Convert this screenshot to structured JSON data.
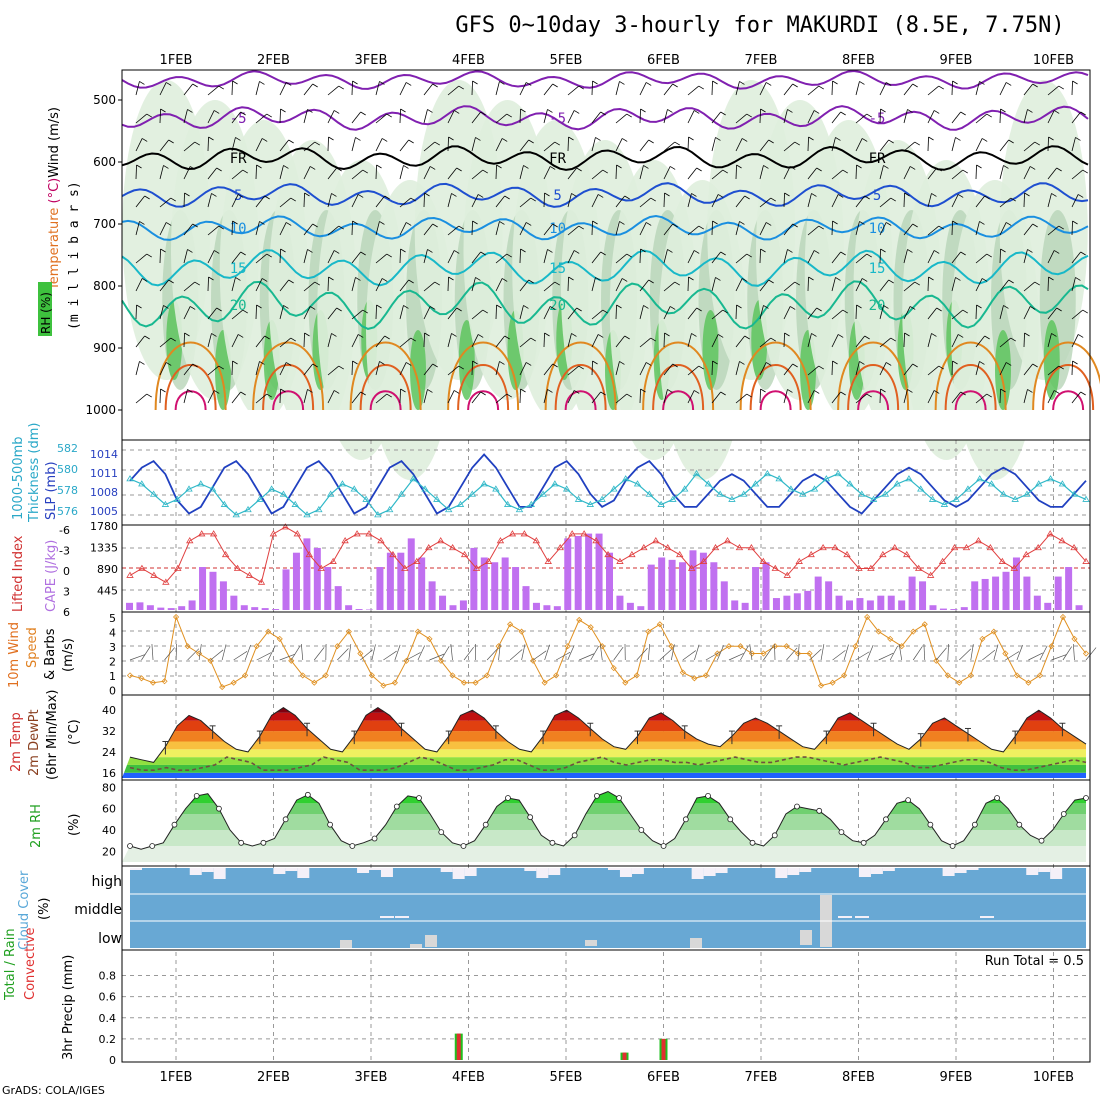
{
  "chart_data": {
    "type": "line",
    "title": "GFS 0~10day 3-hourly for MAKURDI (8.5E, 7.75N)",
    "footer": "GrADS: COLA/IGES",
    "x_dates": [
      "1FEB",
      "2FEB",
      "3FEB",
      "4FEB",
      "5FEB",
      "6FEB",
      "7FEB",
      "8FEB",
      "9FEB",
      "10FEB"
    ],
    "panels": {
      "profile": {
        "label_rh": "RH (%)",
        "label_temperature": "Temperature",
        "label_celsius": "(°C)",
        "label_wind": "Wind (m/s)",
        "ylabel": "(m i l l i b a r s)",
        "y_ticks": [
          "500",
          "600",
          "700",
          "800",
          "900",
          "1000"
        ],
        "contour_labels": [
          "-5",
          "5",
          "10",
          "15",
          "20",
          "FR"
        ]
      },
      "slp": {
        "label_thickness": "1000-500mb",
        "label_thickness2": "Thickness (dm)",
        "label_slp": "SLP (mb)",
        "left_ticks": [
          "582",
          "580",
          "578",
          "576"
        ],
        "right_ticks": [
          "1014",
          "1011",
          "1008",
          "1005"
        ],
        "slp_values": [
          1010,
          1012,
          1013,
          1011,
          1007,
          1005,
          1006,
          1009,
          1012,
          1013,
          1011,
          1008,
          1005,
          1006,
          1009,
          1012,
          1013,
          1011,
          1008,
          1005,
          1006,
          1009,
          1012,
          1013,
          1011,
          1008,
          1005,
          1006,
          1009,
          1012,
          1014,
          1012,
          1009,
          1006,
          1006,
          1009,
          1012,
          1013,
          1011,
          1008,
          1006,
          1007,
          1010,
          1012,
          1013,
          1011,
          1008,
          1006,
          1006,
          1008,
          1010,
          1011,
          1010,
          1008,
          1006,
          1006,
          1008,
          1010,
          1011,
          1010,
          1008,
          1006,
          1005,
          1007,
          1009,
          1011,
          1012,
          1011,
          1009,
          1007,
          1006,
          1007,
          1009,
          1011,
          1012,
          1011,
          1009,
          1007,
          1006,
          1006,
          1008,
          1010
        ],
        "thickness_values": [
          579.5,
          579,
          578,
          577,
          577.5,
          578.5,
          579,
          578.5,
          577,
          576,
          576.5,
          577.5,
          578.5,
          578,
          577,
          576,
          576.5,
          578,
          579,
          578.5,
          577.5,
          576,
          576.5,
          578,
          579.5,
          578.5,
          577.5,
          576.5,
          577,
          578,
          579,
          578.5,
          577,
          576.5,
          577,
          578,
          579,
          578.5,
          577.5,
          577,
          577.5,
          578.5,
          579.5,
          579,
          578,
          577,
          577.5,
          578.5,
          580,
          579,
          578,
          577.5,
          578,
          579,
          580,
          579.5,
          578.5,
          578,
          578.5,
          579.5,
          580,
          579,
          578,
          577.5,
          578,
          579,
          579.5,
          578.5,
          577.5,
          577,
          577.5,
          578.5,
          579.5,
          579,
          578,
          577.5,
          578,
          579,
          579.5,
          579,
          578,
          577.5
        ]
      },
      "cape": {
        "label_li": "Lifted Index",
        "label_cape": "CAPE (J/kg)",
        "left_ticks": [
          "-6",
          "-3",
          "0",
          "3",
          "6"
        ],
        "right_ticks": [
          "1780",
          "1335",
          "890",
          "445"
        ],
        "cape_values": [
          150,
          160,
          100,
          50,
          40,
          80,
          200,
          900,
          800,
          600,
          300,
          100,
          60,
          40,
          20,
          850,
          1200,
          1500,
          1300,
          900,
          500,
          100,
          20,
          10,
          900,
          1200,
          1200,
          1500,
          1100,
          600,
          300,
          100,
          200,
          1300,
          1100,
          1000,
          1100,
          900,
          500,
          150,
          100,
          80,
          1500,
          1550,
          1600,
          1600,
          1200,
          300,
          150,
          80,
          950,
          1100,
          1050,
          1000,
          1250,
          1200,
          1000,
          600,
          200,
          150,
          900,
          1000,
          250,
          300,
          350,
          400,
          700,
          600,
          300,
          200,
          250,
          200,
          300,
          300,
          200,
          700,
          600,
          100,
          30,
          20,
          60,
          600,
          650,
          700,
          800,
          1100,
          700,
          300,
          150,
          700,
          900,
          100
        ],
        "li_values": [
          1,
          0,
          1,
          2,
          0,
          -4,
          -5,
          -5,
          -2,
          0,
          1,
          2,
          -5,
          -6,
          -5,
          -2,
          0,
          -1,
          -4,
          -5,
          -5,
          -4,
          -2,
          0,
          -1,
          -3,
          -4,
          -3,
          -2,
          0,
          -1,
          -4,
          -5,
          -5,
          -4,
          -1,
          -3,
          -5,
          -5,
          -4,
          -2,
          -1,
          -2,
          -3,
          -4,
          -3,
          -2,
          0,
          -1,
          -3,
          -4,
          -3,
          -3,
          -1,
          0,
          1,
          -1,
          -2,
          -3,
          -3,
          -2,
          0,
          0,
          -2,
          -3,
          -2,
          0,
          1,
          -1,
          -3,
          -3,
          -4,
          -3,
          -1,
          0,
          -2,
          -3,
          -5,
          -4,
          -3,
          -1
        ]
      },
      "wind10m": {
        "label1": "10m Wind",
        "label2": "Speed",
        "label3": "& Barbs",
        "unit": "(m/s)",
        "y_ticks": [
          "5",
          "4",
          "3",
          "2",
          "1",
          "0"
        ],
        "speed_values": [
          1,
          0.8,
          0.5,
          0.6,
          5,
          3,
          2.5,
          2,
          0.2,
          0.5,
          1,
          3,
          4,
          3.5,
          2,
          1,
          0.5,
          1,
          3,
          4,
          2.5,
          1,
          0.3,
          0.5,
          2,
          4,
          3.5,
          2,
          1,
          0.5,
          0.5,
          1,
          3,
          4.5,
          4,
          2,
          0.5,
          1,
          3,
          4.8,
          4.3,
          3,
          1.5,
          0.5,
          1,
          4,
          4.5,
          3,
          1.2,
          0.8,
          1,
          2.5,
          3,
          3,
          2.5,
          2.5,
          3,
          3,
          2.5,
          2.5,
          0.3,
          0.5,
          1,
          3,
          5,
          4,
          3.5,
          3,
          4,
          4.5,
          2,
          1,
          0.5,
          1,
          3.5,
          4,
          2.5,
          1,
          0.5,
          1,
          3,
          5,
          3.5,
          2.5
        ]
      },
      "temp2m": {
        "label1": "2m Temp",
        "label2": "2m DewPt",
        "label3": "(6hr Min/Max)",
        "unit": "(°C)",
        "y_ticks": [
          "40",
          "32",
          "24",
          "16"
        ],
        "temp_values": [
          22,
          21,
          20,
          26,
          34,
          38,
          36,
          32,
          28,
          25,
          24,
          30,
          38,
          41,
          38,
          33,
          29,
          25,
          24,
          30,
          38,
          41,
          38,
          33,
          29,
          25,
          24,
          30,
          38,
          40,
          37,
          32,
          28,
          25,
          24,
          30,
          38,
          40,
          37,
          33,
          29,
          26,
          25,
          30,
          37,
          39,
          36,
          32,
          29,
          27,
          26,
          30,
          35,
          37,
          35,
          32,
          29,
          26,
          25,
          30,
          37,
          39,
          36,
          33,
          30,
          27,
          25,
          29,
          35,
          37,
          34,
          31,
          28,
          25,
          24,
          30,
          37,
          40,
          37,
          33,
          30,
          27
        ],
        "dewpt_values": [
          18,
          17,
          17,
          18,
          17,
          17,
          18,
          19,
          22,
          21,
          20,
          17,
          17,
          17,
          18,
          19,
          22,
          21,
          20,
          17,
          17,
          17,
          18,
          20,
          22,
          21,
          19,
          17,
          17,
          18,
          19,
          21,
          21,
          19,
          17,
          17,
          18,
          20,
          21,
          22,
          20,
          19,
          20,
          21,
          21,
          20,
          20,
          19,
          20,
          21,
          22,
          21,
          20,
          20,
          21,
          22,
          22,
          21,
          20,
          19,
          20,
          21,
          22,
          21,
          20,
          18,
          18,
          19,
          20,
          21,
          21,
          20,
          18,
          17,
          17,
          18,
          19,
          20,
          21,
          20
        ]
      },
      "rh2m": {
        "label": "2m RH",
        "unit": "(%)",
        "y_ticks": [
          "80",
          "60",
          "40",
          "20"
        ],
        "rh_values": [
          25,
          22,
          25,
          28,
          45,
          60,
          72,
          74,
          60,
          40,
          28,
          25,
          28,
          32,
          50,
          68,
          73,
          65,
          45,
          30,
          25,
          28,
          32,
          45,
          62,
          72,
          70,
          55,
          38,
          28,
          25,
          30,
          45,
          62,
          70,
          68,
          52,
          35,
          28,
          25,
          35,
          55,
          72,
          76,
          70,
          55,
          40,
          30,
          25,
          32,
          50,
          70,
          72,
          65,
          50,
          38,
          28,
          25,
          35,
          55,
          62,
          60,
          58,
          50,
          38,
          30,
          28,
          35,
          50,
          65,
          68,
          60,
          45,
          30,
          25,
          30,
          45,
          65,
          70,
          60,
          45,
          35,
          30,
          40,
          55,
          68,
          70
        ]
      },
      "cloud": {
        "label1": "Cloud Cover",
        "unit": "(%)",
        "levels": [
          "high",
          "middle",
          "low"
        ]
      },
      "precip": {
        "label_total": "Total / Rain",
        "label_conv": "Convective",
        "ylabel": "3hr Precip (mm)",
        "run_total": "Run Total = 0.5",
        "y_ticks": [
          "0.8",
          "0.6",
          "0.4",
          "0.2",
          "0"
        ],
        "events": [
          {
            "date_index": 2.9,
            "value": 0.25
          },
          {
            "date_index": 4.6,
            "value": 0.07
          },
          {
            "date_index": 5.0,
            "value": 0.2
          }
        ]
      }
    }
  }
}
